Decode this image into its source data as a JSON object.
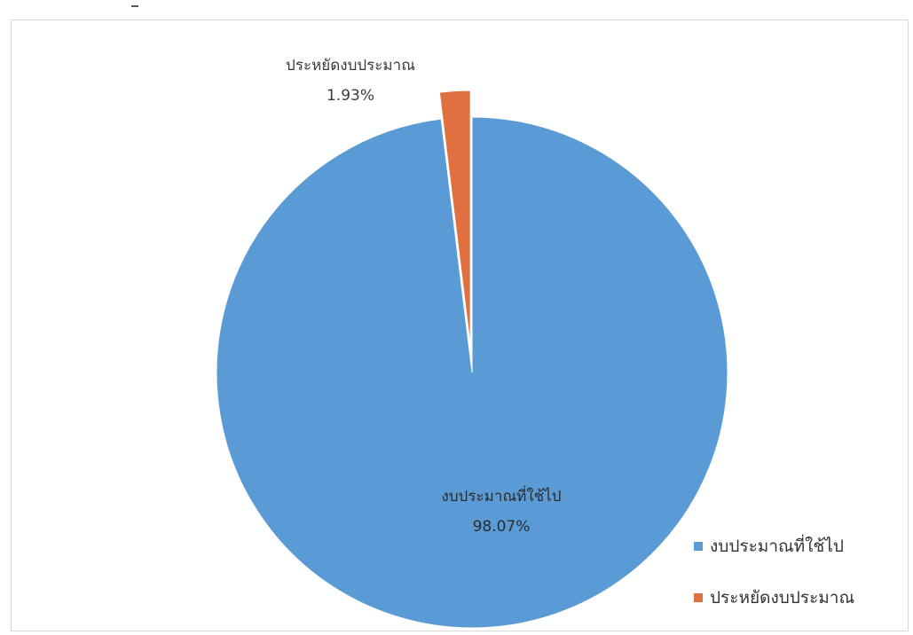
{
  "chart_data": {
    "type": "pie",
    "title": "",
    "slices": [
      {
        "label": "งบประมาณที่ใช้ไป",
        "value": 98.07,
        "percent_label": "98.07%",
        "color": "#5b9bd5",
        "exploded": false
      },
      {
        "label": "ประหยัดงบประมาณ",
        "value": 1.93,
        "percent_label": "1.93%",
        "color": "#e0703f",
        "exploded": true
      }
    ],
    "legend": {
      "placement": "bottom-right",
      "entries": [
        "งบประมาณที่ใช้ไป",
        "ประหยัดงบประมาณ"
      ]
    }
  }
}
